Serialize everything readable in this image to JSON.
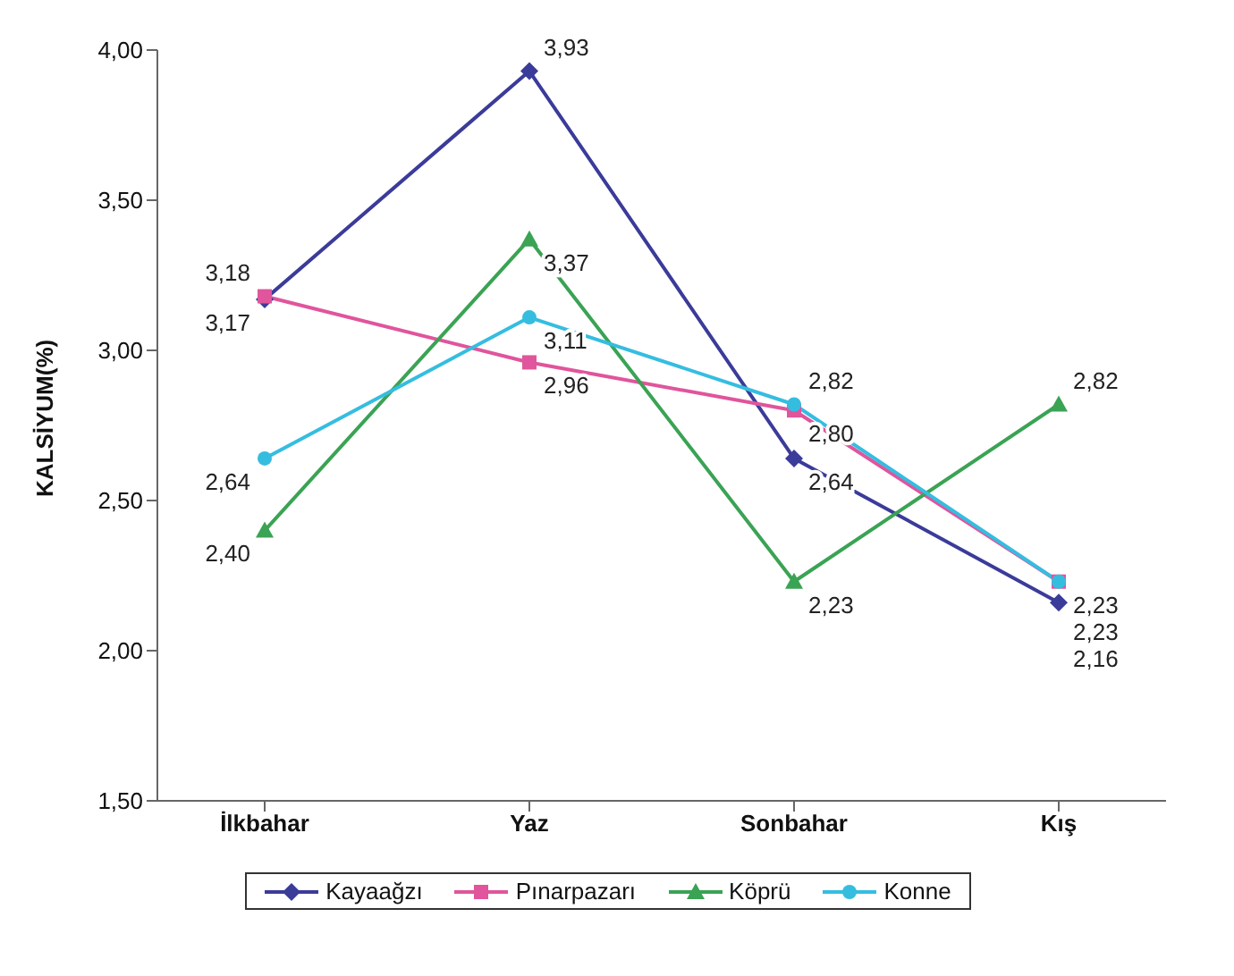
{
  "chart_data": {
    "type": "line",
    "ylabel": "KALSİYUM(%)",
    "categories": [
      "İlkbahar",
      "Yaz",
      "Sonbahar",
      "Kış"
    ],
    "series": [
      {
        "name": "Kayaağzı",
        "color": "#3b3b9a",
        "marker": "diamond",
        "values": [
          3.17,
          3.93,
          2.64,
          2.16
        ],
        "value_labels": [
          "3,17",
          "3,93",
          "2,64",
          "2,16"
        ]
      },
      {
        "name": "Pınarpazarı",
        "color": "#e0559c",
        "marker": "square",
        "values": [
          3.18,
          2.96,
          2.8,
          2.23
        ],
        "value_labels": [
          "3,18",
          "2,96",
          "2,80",
          "2,23"
        ]
      },
      {
        "name": "Köprü",
        "color": "#3aa354",
        "marker": "triangle",
        "values": [
          2.4,
          3.37,
          2.23,
          2.82
        ],
        "value_labels": [
          "2,40",
          "3,37",
          "2,23",
          "2,82"
        ]
      },
      {
        "name": "Konne",
        "color": "#35bde0",
        "marker": "circle",
        "values": [
          2.64,
          3.11,
          2.82,
          2.23
        ],
        "value_labels": [
          "2,64",
          "3,11",
          "2,82",
          "2,23"
        ]
      }
    ],
    "ylim": [
      1.5,
      4.0
    ],
    "yticks": [
      {
        "value": 1.5,
        "label": "1,50"
      },
      {
        "value": 2.0,
        "label": "2,00"
      },
      {
        "value": 2.5,
        "label": "2,50"
      },
      {
        "value": 3.0,
        "label": "3,00"
      },
      {
        "value": 3.5,
        "label": "3,50"
      },
      {
        "value": 4.0,
        "label": "4,00"
      }
    ],
    "grid": false,
    "legend": "bottom"
  }
}
